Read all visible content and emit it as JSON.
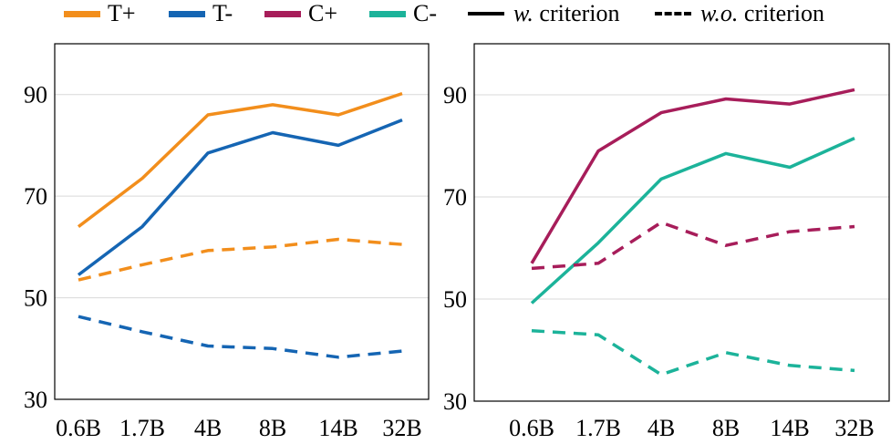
{
  "legend": {
    "items": [
      {
        "label": "T+",
        "color": "#F28E1C",
        "kind": "swatch"
      },
      {
        "label": "T-",
        "color": "#1565B3",
        "kind": "swatch"
      },
      {
        "label": "C+",
        "color": "#A71D5A",
        "kind": "swatch"
      },
      {
        "label": "C-",
        "color": "#1CB39A",
        "kind": "swatch"
      },
      {
        "label_italic": "w.",
        "label_rest": " criterion",
        "kind": "solid"
      },
      {
        "label_italic": "w.o.",
        "label_rest": " criterion",
        "kind": "dashed"
      }
    ]
  },
  "chart_data": [
    {
      "type": "line",
      "categories": [
        "0.6B",
        "1.7B",
        "4B",
        "8B",
        "14B",
        "32B"
      ],
      "ylim": [
        30,
        100
      ],
      "yticks": [
        30,
        50,
        70,
        90
      ],
      "grid": true,
      "legend_position": "top",
      "series": [
        {
          "name": "T+",
          "style": "solid",
          "color": "#F28E1C",
          "values": [
            64,
            73.5,
            86,
            88,
            86,
            90.2
          ]
        },
        {
          "name": "T-",
          "style": "solid",
          "color": "#1565B3",
          "values": [
            54.5,
            64,
            78.5,
            82.5,
            80,
            85
          ]
        },
        {
          "name": "T+",
          "style": "dashed",
          "color": "#F28E1C",
          "values": [
            53.5,
            56.5,
            59.3,
            60,
            61.5,
            60.5
          ]
        },
        {
          "name": "T-",
          "style": "dashed",
          "color": "#1565B3",
          "values": [
            46.3,
            43.3,
            40.5,
            40,
            38.3,
            39.5
          ]
        }
      ]
    },
    {
      "type": "line",
      "categories": [
        "0.6B",
        "1.7B",
        "4B",
        "8B",
        "14B",
        "32B"
      ],
      "ylim": [
        30,
        100
      ],
      "yticks": [
        30,
        50,
        70,
        90
      ],
      "grid": true,
      "series": [
        {
          "name": "C+",
          "style": "solid",
          "color": "#A71D5A",
          "values": [
            57,
            79,
            86.5,
            89.2,
            88.2,
            91
          ]
        },
        {
          "name": "C-",
          "style": "solid",
          "color": "#1CB39A",
          "values": [
            49.2,
            61,
            73.5,
            78.5,
            75.8,
            81.5
          ]
        },
        {
          "name": "C+",
          "style": "dashed",
          "color": "#A71D5A",
          "values": [
            56,
            57,
            65,
            60.5,
            63.2,
            64.2
          ]
        },
        {
          "name": "C-",
          "style": "dashed",
          "color": "#1CB39A",
          "values": [
            43.8,
            43,
            35.2,
            39.5,
            37,
            36
          ]
        }
      ]
    }
  ]
}
